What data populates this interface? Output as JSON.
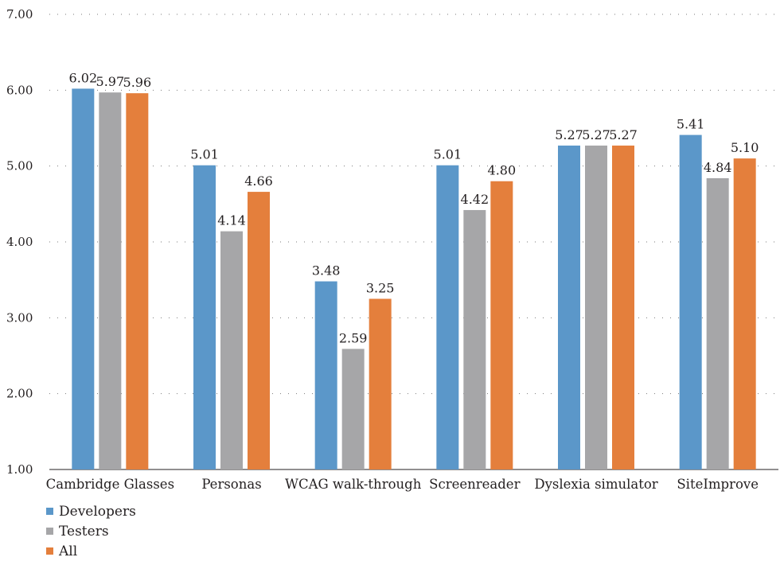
{
  "chart_data": {
    "type": "bar",
    "categories": [
      "Cambridge Glasses",
      "Personas",
      "WCAG walk-through",
      "Screenreader",
      "Dyslexia simulator",
      "SiteImprove"
    ],
    "series": [
      {
        "name": "Developers",
        "color": "#5b97c9",
        "values": [
          6.02,
          5.01,
          3.48,
          5.01,
          5.27,
          5.41
        ],
        "labels": [
          "6.02",
          "5.01",
          "3.48",
          "5.01",
          "5.27",
          "5.41"
        ]
      },
      {
        "name": "Testers",
        "color": "#a6a6a8",
        "values": [
          5.97,
          4.14,
          2.59,
          4.42,
          5.27,
          4.84
        ],
        "labels": [
          "5.97",
          "4.14",
          "2.59",
          "4.42",
          "5.27",
          "4.84"
        ]
      },
      {
        "name": "All",
        "color": "#e47f3c",
        "values": [
          5.96,
          4.66,
          3.25,
          4.8,
          5.27,
          5.1
        ],
        "labels": [
          "5.96",
          "4.66",
          "3.25",
          "4.80",
          "5.27",
          "5.10"
        ]
      }
    ],
    "y_ticks": [
      "1.00",
      "2.00",
      "3.00",
      "4.00",
      "5.00",
      "6.00",
      "7.00"
    ],
    "ylim": [
      1,
      7
    ],
    "grid": "dotted horizontal",
    "legend_position": "bottom-left"
  }
}
